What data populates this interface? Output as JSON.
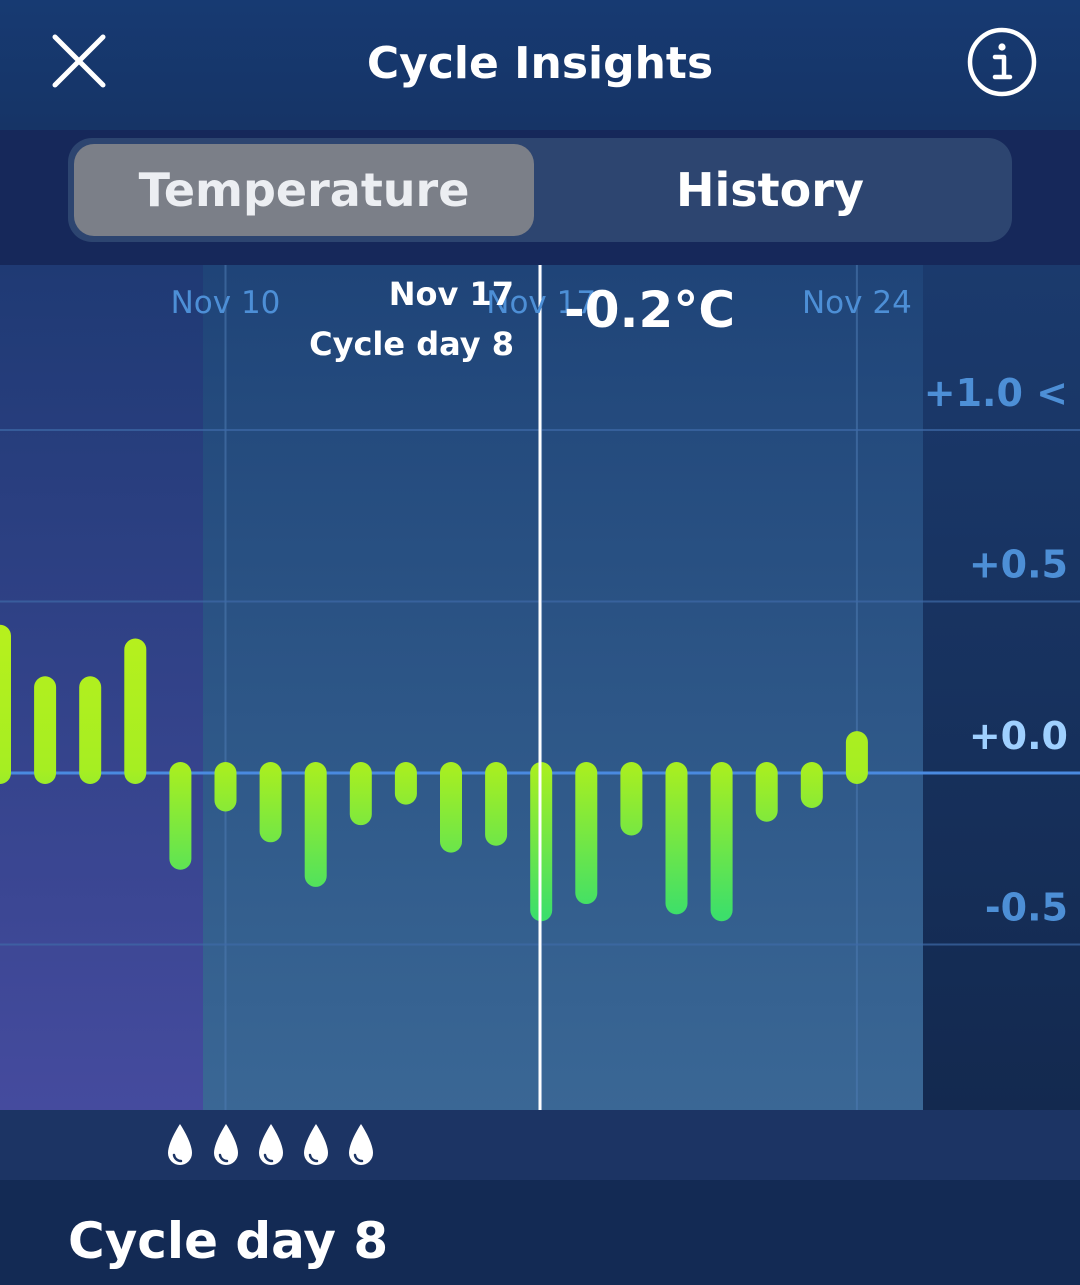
{
  "header": {
    "title": "Cycle Insights",
    "close_icon": "close-icon",
    "info_icon": "info-icon"
  },
  "tabs": [
    {
      "label": "Temperature",
      "active": true
    },
    {
      "label": "History",
      "active": false
    }
  ],
  "chart_data": {
    "type": "bar",
    "unit": "°C",
    "x_tick_labels": [
      "Nov 10",
      "Nov 17",
      "Nov 24"
    ],
    "y_tick_labels": [
      "+1.0 <",
      "+0.5",
      "+0.0",
      "-0.5"
    ],
    "y_ticks": [
      1.0,
      0.5,
      0.0,
      -0.5
    ],
    "ylim": [
      -0.98,
      1.0
    ],
    "values": [
      0.4,
      0.25,
      0.25,
      0.36,
      -0.25,
      -0.08,
      -0.17,
      -0.3,
      -0.12,
      -0.06,
      -0.2,
      -0.18,
      -0.4,
      -0.35,
      -0.15,
      -0.38,
      -0.4,
      -0.11,
      -0.07,
      0.09
    ],
    "selected": {
      "date_label": "Nov 17",
      "cycle_day_label": "Cycle day 8",
      "value_label": "-0.2°C"
    },
    "colors": {
      "bar_top": "#b7f01d",
      "bar_bottom": "#3ddf6a",
      "baseline": "#4a8ae0",
      "tick_label": "#4d8fd6",
      "zero_label": "#9fd0ff",
      "shaded_period": "#3a6795",
      "pre_period": "#454b9e"
    },
    "drops_count": 5
  },
  "footer": {
    "cycle_day_heading": "Cycle day 8"
  }
}
